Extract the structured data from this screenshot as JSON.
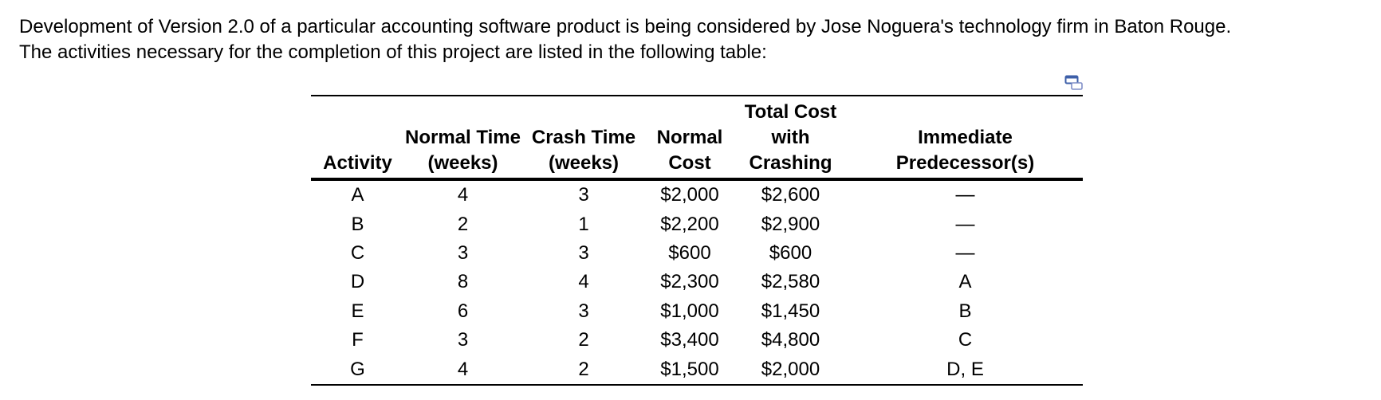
{
  "intro": {
    "line1": "Development of Version 2.0 of a particular accounting software product is being considered by Jose Noguera's technology firm in Baton Rouge.",
    "line2": "The activities necessary for the completion of this project are listed in the following table:"
  },
  "table": {
    "headers": {
      "activity": "Activity",
      "normal_time_1": "Normal Time",
      "normal_time_2": "(weeks)",
      "crash_time_1": "Crash Time",
      "crash_time_2": "(weeks)",
      "normal_cost_1": "Normal",
      "normal_cost_2": "Cost",
      "total_cost_1": "Total Cost",
      "total_cost_2": "with",
      "total_cost_3": "Crashing",
      "pred_1": "Immediate",
      "pred_2": "Predecessor(s)"
    },
    "rows": [
      {
        "activity": "A",
        "normal_time": "4",
        "crash_time": "3",
        "normal_cost": "$2,000",
        "total_cost": "$2,600",
        "predecessors": "—"
      },
      {
        "activity": "B",
        "normal_time": "2",
        "crash_time": "1",
        "normal_cost": "$2,200",
        "total_cost": "$2,900",
        "predecessors": "—"
      },
      {
        "activity": "C",
        "normal_time": "3",
        "crash_time": "3",
        "normal_cost": "$600",
        "total_cost": "$600",
        "predecessors": "—"
      },
      {
        "activity": "D",
        "normal_time": "8",
        "crash_time": "4",
        "normal_cost": "$2,300",
        "total_cost": "$2,580",
        "predecessors": "A"
      },
      {
        "activity": "E",
        "normal_time": "6",
        "crash_time": "3",
        "normal_cost": "$1,000",
        "total_cost": "$1,450",
        "predecessors": "B"
      },
      {
        "activity": "F",
        "normal_time": "3",
        "crash_time": "2",
        "normal_cost": "$3,400",
        "total_cost": "$4,800",
        "predecessors": "C"
      },
      {
        "activity": "G",
        "normal_time": "4",
        "crash_time": "2",
        "normal_cost": "$1,500",
        "total_cost": "$2,000",
        "predecessors": "D, E"
      }
    ]
  },
  "icons": {
    "copy": "copy-table-icon"
  },
  "colors": {
    "icon_accent": "#3d5fa8"
  }
}
